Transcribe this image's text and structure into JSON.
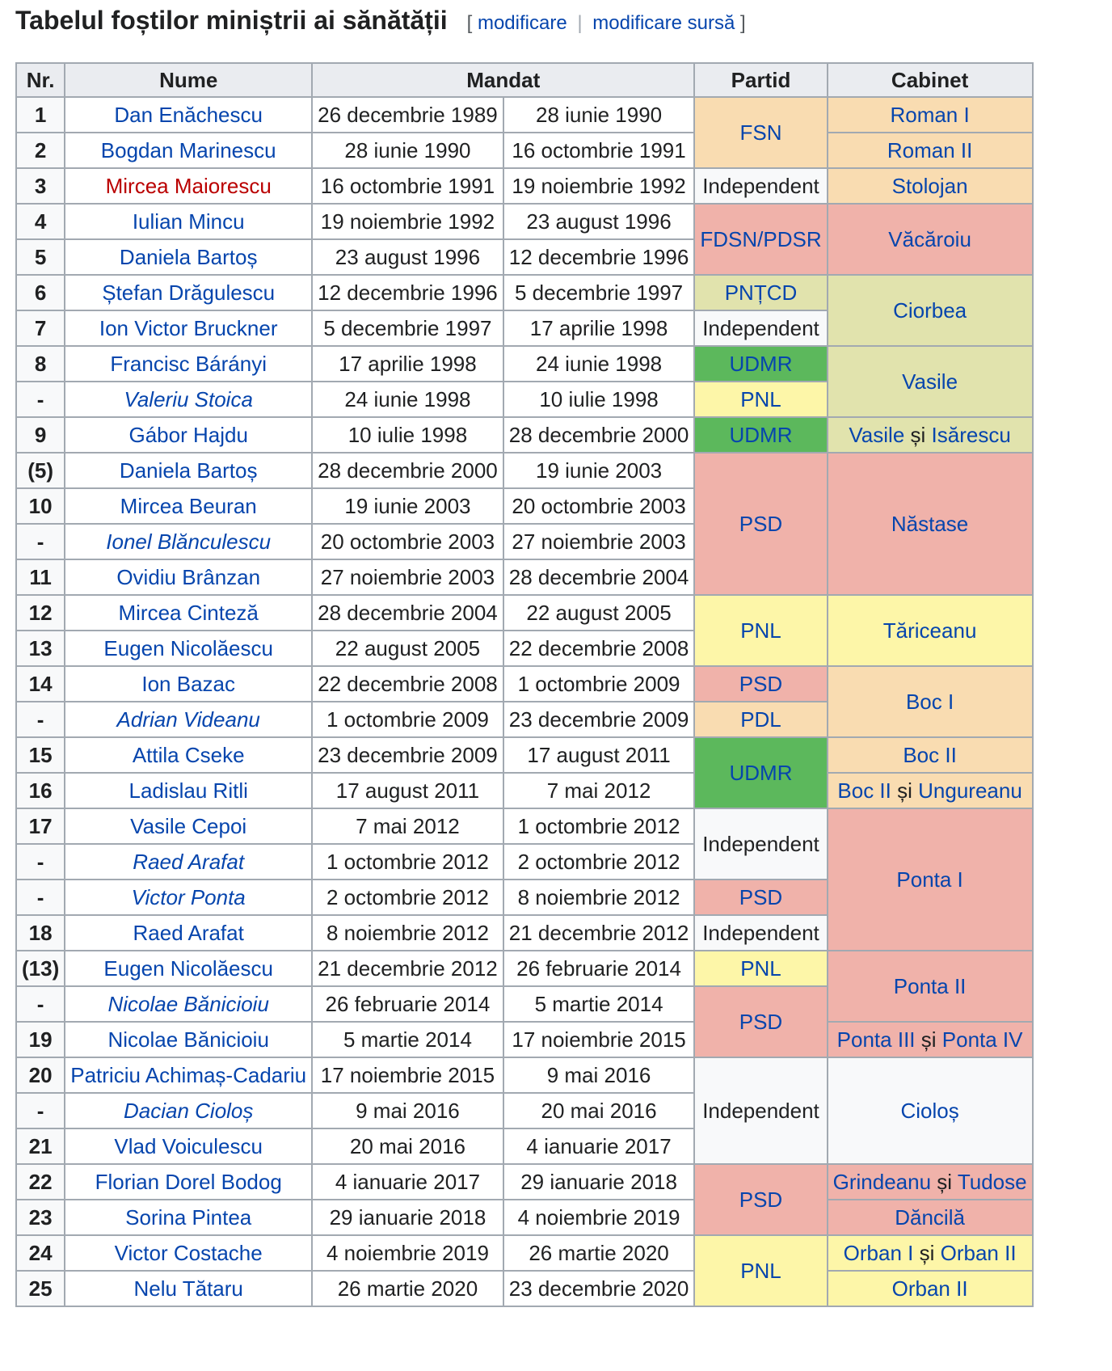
{
  "heading": {
    "title": "Tabelul foștilor miniștrii ai sănătății",
    "edit_open": "[",
    "edit_label": "modificare",
    "edit_sep": "|",
    "edit_source_label": "modificare sursă",
    "edit_close": "]"
  },
  "table": {
    "headers": {
      "nr": "Nr.",
      "name": "Nume",
      "mandate": "Mandat",
      "party": "Partid",
      "cabinet": "Cabinet"
    },
    "rows": [
      {
        "nr": "1",
        "name": "Dan Enăchescu",
        "start": "26 decembrie 1989",
        "end": "28 iunie 1990"
      },
      {
        "nr": "2",
        "name": "Bogdan Marinescu",
        "start": "28 iunie 1990",
        "end": "16 octombrie 1991"
      },
      {
        "nr": "3",
        "name": "Mircea Maiorescu",
        "start": "16 octombrie 1991",
        "end": "19 noiembrie 1992"
      },
      {
        "nr": "4",
        "name": "Iulian Mincu",
        "start": "19 noiembrie 1992",
        "end": "23 august 1996"
      },
      {
        "nr": "5",
        "name": "Daniela Bartoș",
        "start": "23 august 1996",
        "end": "12 decembrie 1996"
      },
      {
        "nr": "6",
        "name": "Ștefan Drăgulescu",
        "start": "12 decembrie 1996",
        "end": "5 decembrie 1997"
      },
      {
        "nr": "7",
        "name": "Ion Victor Bruckner",
        "start": "5 decembrie 1997",
        "end": "17 aprilie 1998"
      },
      {
        "nr": "8",
        "name": "Francisc Bárányi",
        "start": "17 aprilie 1998",
        "end": "24 iunie 1998"
      },
      {
        "nr": "-",
        "name": "Valeriu Stoica",
        "start": "24 iunie 1998",
        "end": "10 iulie 1998"
      },
      {
        "nr": "9",
        "name": "Gábor Hajdu",
        "start": "10 iulie 1998",
        "end": "28 decembrie 2000"
      },
      {
        "nr": "(5)",
        "name": "Daniela Bartoș",
        "start": "28 decembrie 2000",
        "end": "19 iunie 2003"
      },
      {
        "nr": "10",
        "name": "Mircea Beuran",
        "start": "19 iunie 2003",
        "end": "20 octombrie 2003"
      },
      {
        "nr": "-",
        "name": "Ionel Blănculescu",
        "start": "20 octombrie 2003",
        "end": "27 noiembrie 2003"
      },
      {
        "nr": "11",
        "name": "Ovidiu Brânzan",
        "start": "27 noiembrie 2003",
        "end": "28 decembrie 2004"
      },
      {
        "nr": "12",
        "name": "Mircea Cinteză",
        "start": "28 decembrie 2004",
        "end": "22 august 2005"
      },
      {
        "nr": "13",
        "name": "Eugen Nicolăescu",
        "start": "22 august 2005",
        "end": "22 decembrie 2008"
      },
      {
        "nr": "14",
        "name": "Ion Bazac",
        "start": "22 decembrie 2008",
        "end": "1 octombrie 2009"
      },
      {
        "nr": "-",
        "name": "Adrian Videanu",
        "start": "1 octombrie 2009",
        "end": "23 decembrie 2009"
      },
      {
        "nr": "15",
        "name": "Attila Cseke",
        "start": "23 decembrie 2009",
        "end": "17 august 2011"
      },
      {
        "nr": "16",
        "name": "Ladislau Ritli",
        "start": "17 august 2011",
        "end": "7 mai 2012"
      },
      {
        "nr": "17",
        "name": "Vasile Cepoi",
        "start": "7 mai 2012",
        "end": "1 octombrie 2012"
      },
      {
        "nr": "-",
        "name": "Raed Arafat",
        "start": "1 octombrie 2012",
        "end": "2 octombrie 2012"
      },
      {
        "nr": "-",
        "name": "Victor Ponta",
        "start": "2 octombrie 2012",
        "end": "8 noiembrie 2012"
      },
      {
        "nr": "18",
        "name": "Raed Arafat",
        "start": "8 noiembrie 2012",
        "end": "21 decembrie 2012"
      },
      {
        "nr": "(13)",
        "name": "Eugen Nicolăescu",
        "start": "21 decembrie 2012",
        "end": "26 februarie 2014"
      },
      {
        "nr": "-",
        "name": "Nicolae Bănicioiu",
        "start": "26 februarie 2014",
        "end": "5 martie 2014"
      },
      {
        "nr": "19",
        "name": "Nicolae Bănicioiu",
        "start": "5 martie 2014",
        "end": "17 noiembrie 2015"
      },
      {
        "nr": "20",
        "name": "Patriciu Achimaș-Cadariu",
        "start": "17 noiembrie 2015",
        "end": "9 mai 2016"
      },
      {
        "nr": "-",
        "name": "Dacian Cioloș",
        "start": "9 mai 2016",
        "end": "20 mai 2016"
      },
      {
        "nr": "21",
        "name": "Vlad Voiculescu",
        "start": "20 mai 2016",
        "end": "4 ianuarie 2017"
      },
      {
        "nr": "22",
        "name": "Florian Dorel Bodog",
        "start": "4 ianuarie 2017",
        "end": "29 ianuarie 2018"
      },
      {
        "nr": "23",
        "name": "Sorina Pintea",
        "start": "29 ianuarie 2018",
        "end": "4 noiembrie 2019"
      },
      {
        "nr": "24",
        "name": "Victor Costache",
        "start": "4 noiembrie 2019",
        "end": "26 martie 2020"
      },
      {
        "nr": "25",
        "name": "Nelu Tătaru",
        "start": "26 martie 2020",
        "end": "23 decembrie 2020"
      }
    ],
    "parties": [
      "FSN",
      "Independent",
      "FDSN/PDSR",
      "PNȚCD",
      "Independent",
      "UDMR",
      "PNL",
      "UDMR",
      "PSD",
      "PNL",
      "PSD",
      "PDL",
      "UDMR",
      "Independent",
      "PSD",
      "Independent",
      "PNL",
      "PSD",
      "Independent",
      "PSD",
      "PNL"
    ],
    "cabinets": {
      "roman1": "Roman I",
      "roman2": "Roman II",
      "stolojan": "Stolojan",
      "vacaroiu": "Văcăroiu",
      "ciorbea": "Ciorbea",
      "vasile": "Vasile",
      "vasile_a": "Vasile",
      "vasile_amp": "și",
      "vasile_b": "Isărescu",
      "nastase": "Năstase",
      "tariceanu": "Tăriceanu",
      "boc1": "Boc I",
      "boc2": "Boc II",
      "boc2u_a": "Boc II",
      "boc2u_amp": "și",
      "boc2u_b": "Ungureanu",
      "ponta1": "Ponta I",
      "ponta2": "Ponta II",
      "ponta34_a": "Ponta III",
      "ponta34_amp": "și",
      "ponta34_b": "Ponta IV",
      "ciolos": "Cioloș",
      "grindeanu_a": "Grindeanu",
      "grindeanu_amp": "și",
      "grindeanu_b": "Tudose",
      "dancila": "Dăncilă",
      "orban12_a": "Orban I",
      "orban12_amp": "și",
      "orban12_b": "Orban II",
      "orban2": "Orban II"
    }
  },
  "colors": {
    "FSN": "#f9dcb1",
    "PSD": "#f0b2aa",
    "Independent": "#f8f9fa",
    "PNTCD": "#e1e3ad",
    "UDMR": "#5cb85c",
    "PNL": "#fdf6a8",
    "PDL": "#f9dcb1",
    "link": "#0645ad",
    "redlink": "#ba0000"
  }
}
